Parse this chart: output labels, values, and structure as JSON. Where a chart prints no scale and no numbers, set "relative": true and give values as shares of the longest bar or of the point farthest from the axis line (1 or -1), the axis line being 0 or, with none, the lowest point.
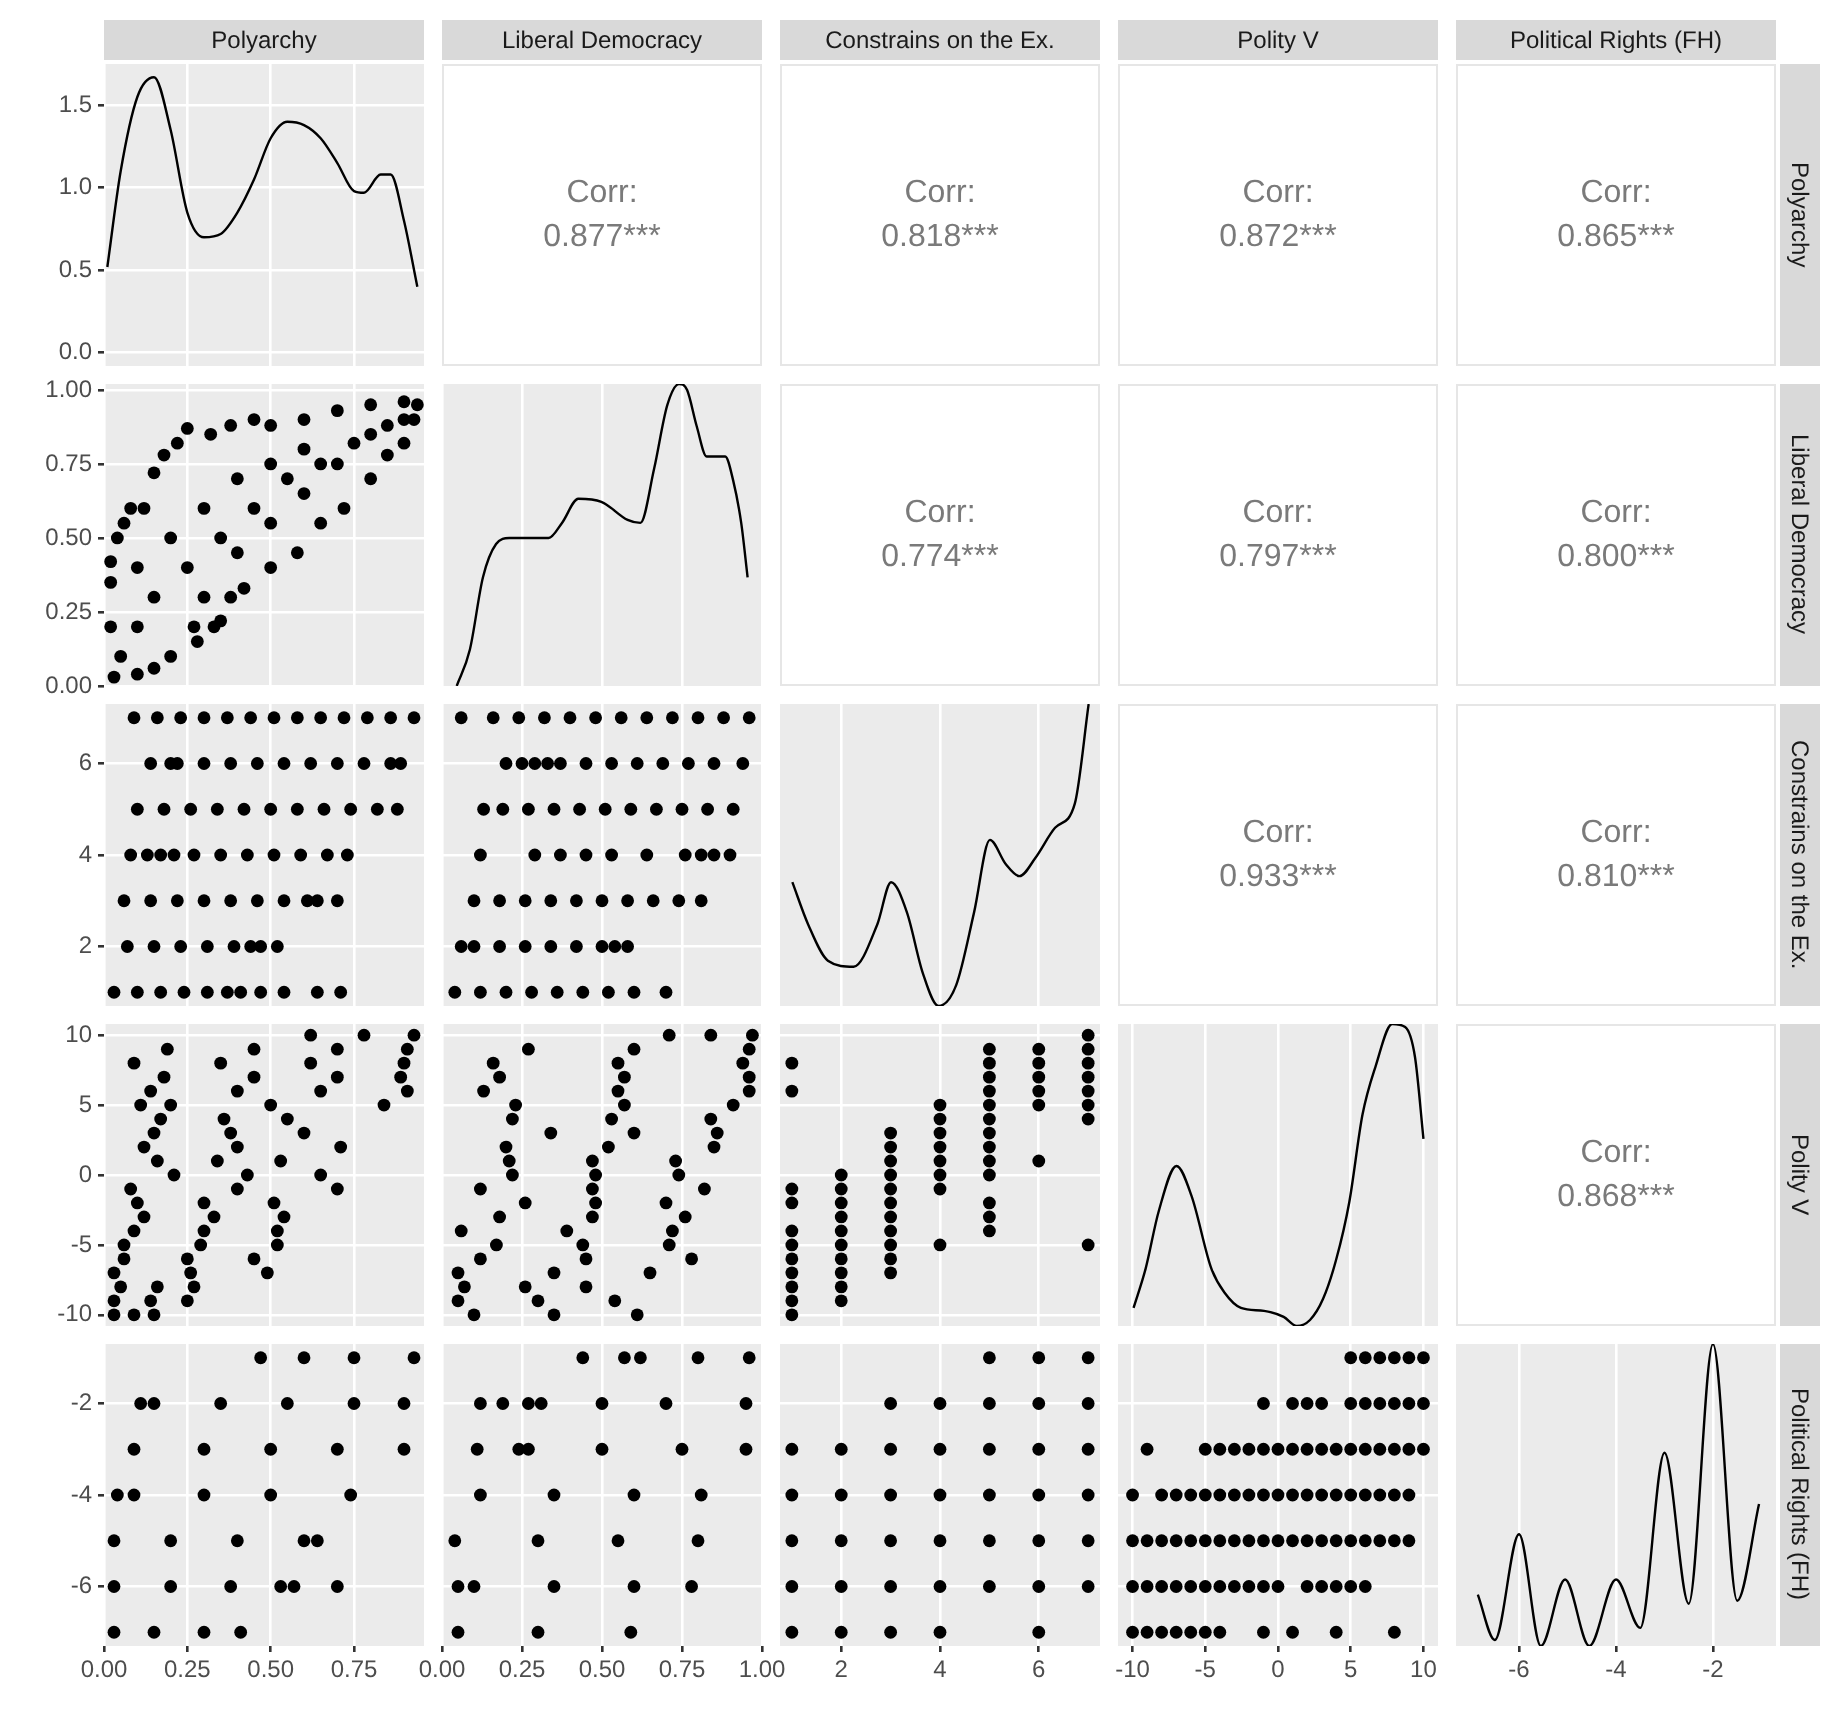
{
  "chart_data": [
    {
      "type": "line",
      "title": "Polyarchy",
      "x": [
        0.01,
        0.05,
        0.1,
        0.15,
        0.2,
        0.25,
        0.3,
        0.35,
        0.4,
        0.45,
        0.5,
        0.55,
        0.6,
        0.65,
        0.7,
        0.75,
        0.78,
        0.83,
        0.86,
        0.9,
        0.94
      ],
      "values": [
        0.52,
        1.1,
        1.55,
        1.67,
        1.35,
        0.85,
        0.7,
        0.72,
        0.85,
        1.05,
        1.3,
        1.4,
        1.38,
        1.3,
        1.15,
        0.98,
        0.97,
        1.08,
        1.08,
        0.8,
        0.4
      ],
      "color": "#000000",
      "marker": "none",
      "line_style": "solid",
      "xlim": [
        0,
        0.96
      ],
      "xticks": [
        {
          "value": 0,
          "label": null
        },
        {
          "value": 0.25,
          "label": null
        },
        {
          "value": 0.5,
          "label": null
        },
        {
          "value": 0.75,
          "label": null
        }
      ],
      "ylim": [
        -0.08,
        1.75
      ],
      "yticks": [
        {
          "value": 0,
          "label": "0.0"
        },
        {
          "value": 0.5,
          "label": "0.5"
        },
        {
          "value": 1,
          "label": "1.0"
        },
        {
          "value": 1.5,
          "label": "1.5"
        }
      ],
      "grid": true,
      "tick_labels": "y"
    },
    {
      "type": "other",
      "title": "Liberal Democracy",
      "annotations": [
        "Corr:",
        "0.877***"
      ]
    },
    {
      "type": "other",
      "title": "Constrains on the Ex.",
      "annotations": [
        "Corr:",
        "0.818***"
      ]
    },
    {
      "type": "other",
      "title": "Polity V",
      "annotations": [
        "Corr:",
        "0.872***"
      ]
    },
    {
      "type": "other",
      "title": "Political Rights (FH)",
      "y2label": "Polyarchy",
      "annotations": [
        "Corr:",
        "0.865***"
      ]
    },
    {
      "type": "scatter",
      "x": [
        0.03,
        0.05,
        0.02,
        0.02,
        0.02,
        0.04,
        0.06,
        0.08,
        0.12,
        0.15,
        0.18,
        0.22,
        0.25,
        0.32,
        0.38,
        0.45,
        0.5,
        0.6,
        0.7,
        0.8,
        0.9,
        0.94,
        0.93,
        0.9,
        0.85,
        0.8,
        0.72,
        0.65,
        0.58,
        0.5,
        0.42,
        0.38,
        0.33,
        0.28,
        0.2,
        0.15,
        0.1,
        0.15,
        0.25,
        0.35,
        0.45,
        0.55,
        0.65,
        0.75,
        0.85,
        0.2,
        0.3,
        0.4,
        0.5,
        0.6,
        0.1,
        0.1,
        0.3,
        0.4,
        0.5,
        0.6,
        0.7,
        0.8,
        0.9,
        0.35,
        0.27
      ],
      "values": [
        0.03,
        0.1,
        0.2,
        0.35,
        0.42,
        0.5,
        0.55,
        0.6,
        0.6,
        0.72,
        0.78,
        0.82,
        0.87,
        0.85,
        0.88,
        0.9,
        0.88,
        0.9,
        0.93,
        0.95,
        0.96,
        0.95,
        0.9,
        0.82,
        0.78,
        0.7,
        0.6,
        0.55,
        0.45,
        0.4,
        0.33,
        0.3,
        0.2,
        0.15,
        0.1,
        0.06,
        0.04,
        0.3,
        0.4,
        0.5,
        0.6,
        0.7,
        0.75,
        0.82,
        0.88,
        0.5,
        0.6,
        0.7,
        0.75,
        0.8,
        0.2,
        0.4,
        0.3,
        0.45,
        0.55,
        0.65,
        0.75,
        0.85,
        0.9,
        0.22,
        0.2
      ],
      "color": "#000000",
      "marker": "circle",
      "xlim": [
        0,
        0.96
      ],
      "xticks": [
        {
          "value": 0,
          "label": null
        },
        {
          "value": 0.25,
          "label": null
        },
        {
          "value": 0.5,
          "label": null
        },
        {
          "value": 0.75,
          "label": null
        }
      ],
      "ylim": [
        0,
        1.02
      ],
      "yticks": [
        {
          "value": 0,
          "label": "0.00"
        },
        {
          "value": 0.25,
          "label": "0.25"
        },
        {
          "value": 0.5,
          "label": "0.50"
        },
        {
          "value": 0.75,
          "label": "0.75"
        },
        {
          "value": 1,
          "label": "1.00"
        }
      ],
      "grid": true,
      "tick_labels": "y"
    },
    {
      "type": "line",
      "relative": true,
      "x": [
        0.046,
        0.087,
        0.128,
        0.169,
        0.21,
        0.333,
        0.375,
        0.426,
        0.498,
        0.58,
        0.62,
        0.663,
        0.704,
        0.741,
        0.766,
        0.796,
        0.827,
        0.858,
        0.885,
        0.91,
        0.935,
        0.955
      ],
      "values": [
        0,
        0.12,
        0.36,
        0.47,
        0.49,
        0.49,
        0.54,
        0.62,
        0.61,
        0.55,
        0.54,
        0.72,
        0.93,
        1,
        0.98,
        0.86,
        0.76,
        0.76,
        0.76,
        0.68,
        0.54,
        0.36
      ],
      "color": "#000000",
      "marker": "none",
      "line_style": "solid",
      "xlim": [
        0,
        1
      ],
      "xticks": [
        {
          "value": 0,
          "label": null
        },
        {
          "value": 0.25,
          "label": null
        },
        {
          "value": 0.5,
          "label": null
        },
        {
          "value": 0.75,
          "label": null
        },
        {
          "value": 1,
          "label": null
        }
      ],
      "grid": true,
      "tick_labels": false
    },
    {
      "type": "other",
      "annotations": [
        "Corr:",
        "0.774***"
      ]
    },
    {
      "type": "other",
      "annotations": [
        "Corr:",
        "0.797***"
      ]
    },
    {
      "type": "other",
      "y2label": "Liberal Democracy",
      "annotations": [
        "Corr:",
        "0.800***"
      ]
    },
    {
      "type": "scatter",
      "x": [
        0.09,
        0.16,
        0.23,
        0.3,
        0.37,
        0.44,
        0.51,
        0.58,
        0.65,
        0.72,
        0.79,
        0.86,
        0.93,
        0.14,
        0.2,
        0.22,
        0.3,
        0.38,
        0.46,
        0.54,
        0.62,
        0.7,
        0.78,
        0.86,
        0.89,
        0.1,
        0.18,
        0.26,
        0.34,
        0.42,
        0.5,
        0.58,
        0.66,
        0.74,
        0.82,
        0.88,
        0.08,
        0.13,
        0.17,
        0.21,
        0.27,
        0.35,
        0.43,
        0.51,
        0.59,
        0.67,
        0.73,
        0.06,
        0.14,
        0.22,
        0.3,
        0.38,
        0.46,
        0.54,
        0.61,
        0.64,
        0.7,
        0.07,
        0.15,
        0.23,
        0.31,
        0.39,
        0.44,
        0.47,
        0.52,
        0.03,
        0.1,
        0.17,
        0.24,
        0.31,
        0.37,
        0.41,
        0.47,
        0.54,
        0.64,
        0.71
      ],
      "values": [
        7,
        7,
        7,
        7,
        7,
        7,
        7,
        7,
        7,
        7,
        7,
        7,
        7,
        6,
        6,
        6,
        6,
        6,
        6,
        6,
        6,
        6,
        6,
        6,
        6,
        5,
        5,
        5,
        5,
        5,
        5,
        5,
        5,
        5,
        5,
        5,
        4,
        4,
        4,
        4,
        4,
        4,
        4,
        4,
        4,
        4,
        4,
        3,
        3,
        3,
        3,
        3,
        3,
        3,
        3,
        3,
        3,
        2,
        2,
        2,
        2,
        2,
        2,
        2,
        2,
        1,
        1,
        1,
        1,
        1,
        1,
        1,
        1,
        1,
        1,
        1
      ],
      "color": "#000000",
      "marker": "circle",
      "xlim": [
        0,
        0.96
      ],
      "xticks": [
        {
          "value": 0,
          "label": null
        },
        {
          "value": 0.25,
          "label": null
        },
        {
          "value": 0.5,
          "label": null
        },
        {
          "value": 0.75,
          "label": null
        }
      ],
      "ylim": [
        0.7,
        7.3
      ],
      "yticks": [
        2,
        4,
        6
      ],
      "grid": true,
      "tick_labels": "y"
    },
    {
      "type": "scatter",
      "x": [
        0.06,
        0.16,
        0.24,
        0.32,
        0.4,
        0.48,
        0.56,
        0.64,
        0.72,
        0.8,
        0.88,
        0.96,
        0.2,
        0.25,
        0.29,
        0.33,
        0.37,
        0.45,
        0.53,
        0.61,
        0.69,
        0.77,
        0.85,
        0.94,
        0.13,
        0.19,
        0.27,
        0.35,
        0.43,
        0.51,
        0.59,
        0.67,
        0.75,
        0.83,
        0.91,
        0.12,
        0.29,
        0.37,
        0.45,
        0.53,
        0.64,
        0.76,
        0.81,
        0.85,
        0.9,
        0.1,
        0.18,
        0.26,
        0.34,
        0.42,
        0.5,
        0.58,
        0.66,
        0.74,
        0.81,
        0.06,
        0.1,
        0.18,
        0.26,
        0.34,
        0.42,
        0.5,
        0.54,
        0.58,
        0.04,
        0.12,
        0.2,
        0.28,
        0.36,
        0.44,
        0.52,
        0.6,
        0.7
      ],
      "values": [
        7,
        7,
        7,
        7,
        7,
        7,
        7,
        7,
        7,
        7,
        7,
        7,
        6,
        6,
        6,
        6,
        6,
        6,
        6,
        6,
        6,
        6,
        6,
        6,
        5,
        5,
        5,
        5,
        5,
        5,
        5,
        5,
        5,
        5,
        5,
        4,
        4,
        4,
        4,
        4,
        4,
        4,
        4,
        4,
        4,
        3,
        3,
        3,
        3,
        3,
        3,
        3,
        3,
        3,
        3,
        2,
        2,
        2,
        2,
        2,
        2,
        2,
        2,
        2,
        1,
        1,
        1,
        1,
        1,
        1,
        1,
        1,
        1
      ],
      "color": "#000000",
      "marker": "circle",
      "xlim": [
        0,
        1
      ],
      "xticks": [
        {
          "value": 0,
          "label": null
        },
        {
          "value": 0.25,
          "label": null
        },
        {
          "value": 0.5,
          "label": null
        },
        {
          "value": 0.75,
          "label": null
        },
        {
          "value": 1,
          "label": null
        }
      ],
      "ylim": [
        0.7,
        7.3
      ],
      "yticks": [
        2,
        4,
        6
      ],
      "grid": true,
      "tick_labels": false
    },
    {
      "type": "line",
      "relative": true,
      "x": [
        1.01,
        1.33,
        1.73,
        2.25,
        2.73,
        3.01,
        3.33,
        3.65,
        3.97,
        4.33,
        4.69,
        5.01,
        5.33,
        5.61,
        5.93,
        6.33,
        6.73,
        7.01
      ],
      "values": [
        0.41,
        0.27,
        0.15,
        0.13,
        0.27,
        0.41,
        0.31,
        0.11,
        0,
        0.07,
        0.31,
        0.55,
        0.47,
        0.43,
        0.49,
        0.59,
        0.67,
        1
      ],
      "color": "#000000",
      "marker": "none",
      "line_style": "solid",
      "xlim": [
        0.76,
        7.24
      ],
      "xticks": [
        2,
        4,
        6
      ],
      "grid": true,
      "tick_labels": false
    },
    {
      "type": "other",
      "annotations": [
        "Corr:",
        "0.933***"
      ]
    },
    {
      "type": "other",
      "y2label": "Constrains on the Ex.",
      "annotations": [
        "Corr:",
        "0.810***"
      ]
    },
    {
      "type": "scatter",
      "x": [
        0.62,
        0.78,
        0.93,
        0.19,
        0.45,
        0.7,
        0.91,
        0.09,
        0.35,
        0.62,
        0.9,
        0.18,
        0.45,
        0.7,
        0.89,
        0.14,
        0.4,
        0.65,
        0.91,
        0.11,
        0.2,
        0.5,
        0.84,
        0.17,
        0.36,
        0.55,
        0.15,
        0.38,
        0.6,
        0.12,
        0.4,
        0.71,
        0.16,
        0.34,
        0.53,
        0.21,
        0.43,
        0.65,
        0.08,
        0.4,
        0.7,
        0.1,
        0.3,
        0.51,
        0.12,
        0.33,
        0.54,
        0.09,
        0.3,
        0.52,
        0.06,
        0.29,
        0.52,
        0.06,
        0.25,
        0.45,
        0.03,
        0.26,
        0.49,
        0.05,
        0.16,
        0.27,
        0.03,
        0.14,
        0.25,
        0.03,
        0.09,
        0.15
      ],
      "values": [
        10,
        10,
        10,
        9,
        9,
        9,
        9,
        8,
        8,
        8,
        8,
        7,
        7,
        7,
        7,
        6,
        6,
        6,
        6,
        5,
        5,
        5,
        5,
        4,
        4,
        4,
        3,
        3,
        3,
        2,
        2,
        2,
        1,
        1,
        1,
        0,
        0,
        0,
        -1,
        -1,
        -1,
        -2,
        -2,
        -2,
        -3,
        -3,
        -3,
        -4,
        -4,
        -4,
        -5,
        -5,
        -5,
        -6,
        -6,
        -6,
        -7,
        -7,
        -7,
        -8,
        -8,
        -8,
        -9,
        -9,
        -9,
        -10,
        -10,
        -10
      ],
      "color": "#000000",
      "marker": "circle",
      "xlim": [
        0,
        0.96
      ],
      "xticks": [
        {
          "value": 0,
          "label": null
        },
        {
          "value": 0.25,
          "label": null
        },
        {
          "value": 0.5,
          "label": null
        },
        {
          "value": 0.75,
          "label": null
        }
      ],
      "ylim": [
        -10.8,
        10.8
      ],
      "yticks": [
        -10,
        -5,
        0,
        5,
        10
      ],
      "grid": true,
      "tick_labels": "y"
    },
    {
      "type": "scatter",
      "x": [
        0.71,
        0.84,
        0.97,
        0.27,
        0.6,
        0.96,
        0.16,
        0.55,
        0.94,
        0.18,
        0.57,
        0.96,
        0.13,
        0.55,
        0.96,
        0.23,
        0.57,
        0.91,
        0.22,
        0.53,
        0.84,
        0.34,
        0.6,
        0.86,
        0.2,
        0.52,
        0.85,
        0.21,
        0.47,
        0.73,
        0.22,
        0.48,
        0.74,
        0.12,
        0.47,
        0.82,
        0.26,
        0.48,
        0.7,
        0.18,
        0.47,
        0.76,
        0.06,
        0.39,
        0.72,
        0.17,
        0.44,
        0.71,
        0.12,
        0.45,
        0.78,
        0.05,
        0.35,
        0.65,
        0.07,
        0.26,
        0.45,
        0.05,
        0.3,
        0.54,
        0.1,
        0.35,
        0.61
      ],
      "values": [
        10,
        10,
        10,
        9,
        9,
        9,
        8,
        8,
        8,
        7,
        7,
        7,
        6,
        6,
        6,
        5,
        5,
        5,
        4,
        4,
        4,
        3,
        3,
        3,
        2,
        2,
        2,
        1,
        1,
        1,
        0,
        0,
        0,
        -1,
        -1,
        -1,
        -2,
        -2,
        -2,
        -3,
        -3,
        -3,
        -4,
        -4,
        -4,
        -5,
        -5,
        -5,
        -6,
        -6,
        -6,
        -7,
        -7,
        -7,
        -8,
        -8,
        -8,
        -9,
        -9,
        -9,
        -10,
        -10,
        -10
      ],
      "color": "#000000",
      "marker": "circle",
      "xlim": [
        0,
        1
      ],
      "xticks": [
        {
          "value": 0,
          "label": null
        },
        {
          "value": 0.25,
          "label": null
        },
        {
          "value": 0.5,
          "label": null
        },
        {
          "value": 0.75,
          "label": null
        },
        {
          "value": 1,
          "label": null
        }
      ],
      "ylim": [
        -10.8,
        10.8
      ],
      "yticks": [
        -10,
        -5,
        0,
        5,
        10
      ],
      "grid": true,
      "tick_labels": false
    },
    {
      "type": "scatter",
      "x": [
        1,
        1,
        1,
        1,
        1,
        1,
        1,
        1,
        1,
        1,
        1,
        2,
        2,
        2,
        2,
        2,
        2,
        2,
        2,
        2,
        2,
        3,
        3,
        3,
        3,
        3,
        3,
        3,
        3,
        3,
        3,
        3,
        4,
        4,
        4,
        4,
        4,
        4,
        4,
        4,
        5,
        5,
        5,
        5,
        5,
        5,
        5,
        5,
        5,
        5,
        5,
        5,
        5,
        6,
        6,
        6,
        6,
        6,
        6,
        7,
        7,
        7,
        7,
        7,
        7,
        7,
        7
      ],
      "values": [
        8,
        6,
        -1,
        -2,
        -4,
        -5,
        -6,
        -7,
        -8,
        -9,
        -10,
        0,
        -1,
        -2,
        -3,
        -4,
        -5,
        -6,
        -7,
        -8,
        -9,
        3,
        2,
        1,
        0,
        -1,
        -2,
        -3,
        -4,
        -5,
        -6,
        -7,
        5,
        4,
        3,
        2,
        1,
        0,
        -1,
        -5,
        9,
        8,
        7,
        6,
        5,
        4,
        3,
        2,
        1,
        0,
        -2,
        -3,
        -4,
        9,
        8,
        7,
        6,
        5,
        1,
        10,
        9,
        8,
        7,
        6,
        5,
        4,
        -5
      ],
      "color": "#000000",
      "marker": "circle",
      "xlim": [
        0.76,
        7.24
      ],
      "xticks": [
        2,
        4,
        6
      ],
      "ylim": [
        -10.8,
        10.8
      ],
      "yticks": [
        -10,
        -5,
        0,
        5,
        10
      ],
      "grid": true,
      "tick_labels": false
    },
    {
      "type": "line",
      "relative": true,
      "x": [
        -9.93,
        -9.1,
        -8.2,
        -6.98,
        -5.94,
        -4.58,
        -3.67,
        -2.55,
        -0.96,
        0.39,
        1.29,
        2.2,
        3.1,
        4,
        4.9,
        5.81,
        6.71,
        7.85,
        8.74,
        9.42,
        10
      ],
      "values": [
        0.06,
        0.19,
        0.38,
        0.53,
        0.43,
        0.19,
        0.11,
        0.06,
        0.05,
        0.03,
        0,
        0.02,
        0.09,
        0.22,
        0.41,
        0.7,
        0.86,
        1,
        0.99,
        0.89,
        0.62
      ],
      "color": "#000000",
      "marker": "none",
      "line_style": "solid",
      "xlim": [
        -11,
        11
      ],
      "xticks": [
        -10,
        -5,
        0,
        5,
        10
      ],
      "grid": true,
      "tick_labels": false
    },
    {
      "type": "other",
      "y2label": "Polity V",
      "annotations": [
        "Corr:",
        "0.868***"
      ]
    },
    {
      "type": "scatter",
      "x": [
        0.47,
        0.6,
        0.75,
        0.93,
        0.11,
        0.15,
        0.35,
        0.55,
        0.75,
        0.9,
        0.09,
        0.3,
        0.5,
        0.7,
        0.9,
        0.04,
        0.09,
        0.3,
        0.5,
        0.74,
        0.03,
        0.2,
        0.4,
        0.6,
        0.64,
        0.03,
        0.2,
        0.38,
        0.53,
        0.57,
        0.7,
        0.03,
        0.15,
        0.3,
        0.41
      ],
      "values": [
        -1,
        -1,
        -1,
        -1,
        -2,
        -2,
        -2,
        -2,
        -2,
        -2,
        -3,
        -3,
        -3,
        -3,
        -3,
        -4,
        -4,
        -4,
        -4,
        -4,
        -5,
        -5,
        -5,
        -5,
        -5,
        -6,
        -6,
        -6,
        -6,
        -6,
        -6,
        -7,
        -7,
        -7,
        -7
      ],
      "color": "#000000",
      "marker": "circle",
      "xlim": [
        0,
        0.96
      ],
      "xticks": [
        {
          "value": 0,
          "label": "0.00"
        },
        {
          "value": 0.25,
          "label": "0.25"
        },
        {
          "value": 0.5,
          "label": "0.50"
        },
        {
          "value": 0.75,
          "label": "0.75"
        }
      ],
      "ylim": [
        -7.3,
        -0.7
      ],
      "yticks": [
        -6,
        -4,
        -2
      ],
      "grid": true
    },
    {
      "type": "scatter",
      "x": [
        0.44,
        0.57,
        0.62,
        0.8,
        0.96,
        0.12,
        0.19,
        0.27,
        0.31,
        0.5,
        0.7,
        0.95,
        0.11,
        0.24,
        0.27,
        0.5,
        0.75,
        0.95,
        0.12,
        0.35,
        0.6,
        0.81,
        0.04,
        0.3,
        0.55,
        0.8,
        0.05,
        0.1,
        0.35,
        0.6,
        0.78,
        0.05,
        0.3,
        0.59
      ],
      "values": [
        -1,
        -1,
        -1,
        -1,
        -1,
        -2,
        -2,
        -2,
        -2,
        -2,
        -2,
        -2,
        -3,
        -3,
        -3,
        -3,
        -3,
        -3,
        -4,
        -4,
        -4,
        -4,
        -5,
        -5,
        -5,
        -5,
        -6,
        -6,
        -6,
        -6,
        -6,
        -7,
        -7,
        -7
      ],
      "color": "#000000",
      "marker": "circle",
      "xlim": [
        0,
        1
      ],
      "xticks": [
        {
          "value": 0,
          "label": "0.00"
        },
        {
          "value": 0.25,
          "label": "0.25"
        },
        {
          "value": 0.5,
          "label": "0.50"
        },
        {
          "value": 0.75,
          "label": "0.75"
        },
        {
          "value": 1,
          "label": "1.00"
        }
      ],
      "ylim": [
        -7.3,
        -0.7
      ],
      "yticks": [
        -6,
        -4,
        -2
      ],
      "grid": true,
      "tick_labels": "x"
    },
    {
      "type": "scatter",
      "x": [
        5,
        6,
        7,
        3,
        4,
        5,
        6,
        7,
        1,
        2,
        3,
        4,
        5,
        6,
        7,
        1,
        2,
        3,
        4,
        5,
        6,
        7,
        1,
        2,
        3,
        4,
        5,
        6,
        7,
        1,
        2,
        3,
        4,
        5,
        6,
        7,
        1,
        2,
        3,
        4,
        6
      ],
      "values": [
        -1,
        -1,
        -1,
        -2,
        -2,
        -2,
        -2,
        -2,
        -3,
        -3,
        -3,
        -3,
        -3,
        -3,
        -3,
        -4,
        -4,
        -4,
        -4,
        -4,
        -4,
        -4,
        -5,
        -5,
        -5,
        -5,
        -5,
        -5,
        -5,
        -6,
        -6,
        -6,
        -6,
        -6,
        -6,
        -6,
        -7,
        -7,
        -7,
        -7,
        -7
      ],
      "color": "#000000",
      "marker": "circle",
      "xlim": [
        0.76,
        7.24
      ],
      "xticks": [
        2,
        4,
        6
      ],
      "ylim": [
        -7.3,
        -0.7
      ],
      "yticks": [
        -6,
        -4,
        -2
      ],
      "grid": true,
      "tick_labels": "x"
    },
    {
      "type": "scatter",
      "x": [
        5,
        6,
        7,
        8,
        9,
        10,
        -1,
        1,
        2,
        3,
        5,
        6,
        7,
        8,
        9,
        10,
        -9,
        -5,
        -4,
        -3,
        -2,
        -1,
        0,
        1,
        2,
        3,
        4,
        5,
        6,
        7,
        8,
        9,
        10,
        -10,
        -8,
        -7,
        -6,
        -5,
        -4,
        -3,
        -2,
        -1,
        0,
        1,
        2,
        3,
        4,
        5,
        6,
        7,
        8,
        9,
        -10,
        -9,
        -8,
        -7,
        -6,
        -5,
        -4,
        -3,
        -2,
        -1,
        0,
        1,
        2,
        3,
        4,
        5,
        6,
        7,
        8,
        9,
        -10,
        -9,
        -8,
        -7,
        -6,
        -5,
        -4,
        -3,
        -2,
        -1,
        0,
        2,
        3,
        4,
        5,
        6,
        -10,
        -9,
        -8,
        -7,
        -6,
        -5,
        -4,
        -1,
        1,
        4,
        8
      ],
      "values": [
        -1,
        -1,
        -1,
        -1,
        -1,
        -1,
        -2,
        -2,
        -2,
        -2,
        -2,
        -2,
        -2,
        -2,
        -2,
        -2,
        -3,
        -3,
        -3,
        -3,
        -3,
        -3,
        -3,
        -3,
        -3,
        -3,
        -3,
        -3,
        -3,
        -3,
        -3,
        -3,
        -3,
        -4,
        -4,
        -4,
        -4,
        -4,
        -4,
        -4,
        -4,
        -4,
        -4,
        -4,
        -4,
        -4,
        -4,
        -4,
        -4,
        -4,
        -4,
        -4,
        -5,
        -5,
        -5,
        -5,
        -5,
        -5,
        -5,
        -5,
        -5,
        -5,
        -5,
        -5,
        -5,
        -5,
        -5,
        -5,
        -5,
        -5,
        -5,
        -5,
        -6,
        -6,
        -6,
        -6,
        -6,
        -6,
        -6,
        -6,
        -6,
        -6,
        -6,
        -6,
        -6,
        -6,
        -6,
        -6,
        -7,
        -7,
        -7,
        -7,
        -7,
        -7,
        -7,
        -7,
        -7,
        -7,
        -7
      ],
      "color": "#000000",
      "marker": "circle",
      "xlim": [
        -11,
        11
      ],
      "xticks": [
        -10,
        -5,
        0,
        5,
        10
      ],
      "ylim": [
        -7.3,
        -0.7
      ],
      "yticks": [
        -6,
        -4,
        -2
      ],
      "grid": true,
      "tick_labels": "x"
    },
    {
      "type": "line",
      "relative": true,
      "y2label": "Political Rights (FH)",
      "x": [
        -6.85,
        -6.5,
        -6,
        -5.55,
        -5.05,
        -4.55,
        -4,
        -3.5,
        -3,
        -2.5,
        -2,
        -1.5,
        -1.05
      ],
      "values": [
        0.17,
        0.02,
        0.37,
        0,
        0.22,
        0,
        0.22,
        0.06,
        0.64,
        0.14,
        1,
        0.15,
        0.47
      ],
      "color": "#000000",
      "marker": "none",
      "line_style": "solid",
      "xlim": [
        -7.3,
        -0.7
      ],
      "xticks": [
        -6,
        -4,
        -2
      ],
      "grid": true,
      "tick_labels": "x"
    }
  ]
}
